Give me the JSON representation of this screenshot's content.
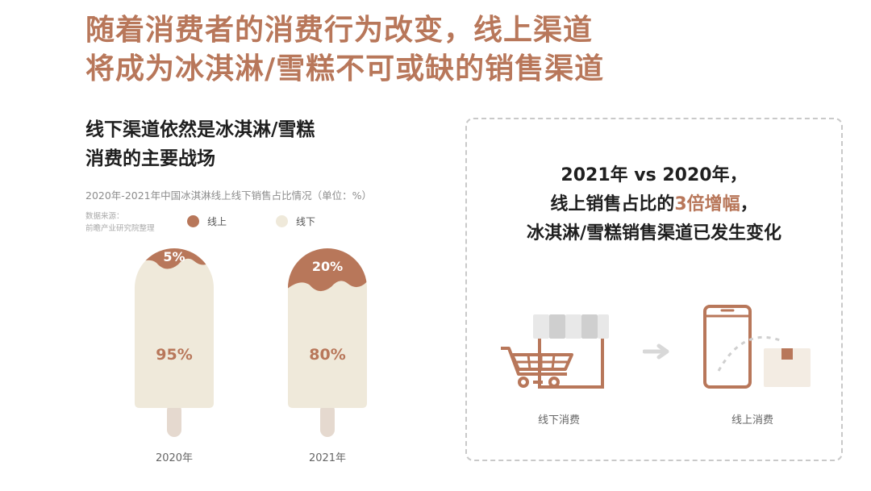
{
  "headline": {
    "line1": "随着消费者的消费行为改变，线上渠道",
    "line2": "将成为冰淇淋/雪糕不可或缺的销售渠道"
  },
  "subhead": {
    "line1": "线下渠道依然是冰淇淋/雪糕",
    "line2": "消费的主要战场"
  },
  "chart_data": {
    "type": "bar",
    "title": "2020年-2021年中国冰淇淋线上线下销售占比情况（单位：%）",
    "source_label": "数据来源：",
    "source_name": "前瞻产业研究院整理",
    "stacked": true,
    "ylim": [
      0,
      100
    ],
    "categories": [
      "2020年",
      "2021年"
    ],
    "series": [
      {
        "name": "线上",
        "values": [
          5,
          20
        ],
        "labels": [
          "5%",
          "20%"
        ],
        "color": "#b8775a"
      },
      {
        "name": "线下",
        "values": [
          95,
          80
        ],
        "labels": [
          "95%",
          "80%"
        ],
        "color": "#efe9da"
      }
    ]
  },
  "panel": {
    "line1": "2021年 vs 2020年，",
    "line2_pre": "线上销售占比的",
    "line2_hl": "3倍增幅",
    "line2_post": "，",
    "line3": "冰淇淋/雪糕销售渠道已发生变化",
    "offline_label": "线下消费",
    "online_label": "线上消费",
    "store_icon": "shopping-cart-store-icon",
    "arrow_icon": "arrow-right-icon",
    "online_icon": "phone-parcel-icon"
  },
  "colors": {
    "accent": "#b8775a",
    "cream": "#efe9da",
    "stick": "#e5d9cf"
  }
}
